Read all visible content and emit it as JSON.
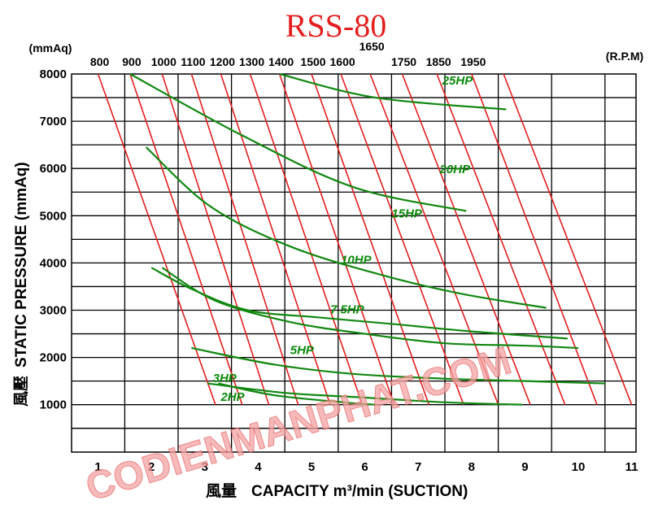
{
  "chart_data": {
    "type": "line",
    "title": "RSS-80",
    "xlabel_cjk": "風量",
    "xlabel": "CAPACITY  m³/min (SUCTION)",
    "ylabel_cjk": "風壓",
    "ylabel": "STATIC  PRESSURE  (mmAq)",
    "y_unit": "(mmAq)",
    "rpm_unit": "(R.P.M)",
    "xlim": [
      0,
      11
    ],
    "ylim": [
      0,
      8000
    ],
    "x_ticks": [
      1,
      2,
      3,
      4,
      5,
      6,
      7,
      8,
      9,
      10,
      11
    ],
    "y_ticks": [
      1000,
      2000,
      3000,
      4000,
      5000,
      6000,
      7000,
      8000
    ],
    "grid": true,
    "rpm_series": [
      {
        "name": "800",
        "points": [
          [
            1.0,
            8000
          ],
          [
            3.2,
            1000
          ]
        ]
      },
      {
        "name": "900",
        "points": [
          [
            1.6,
            8000
          ],
          [
            3.7,
            1000
          ]
        ]
      },
      {
        "name": "1000",
        "points": [
          [
            2.2,
            8000
          ],
          [
            4.2,
            1000
          ]
        ]
      },
      {
        "name": "1100",
        "points": [
          [
            2.75,
            8000
          ],
          [
            4.75,
            1000
          ]
        ]
      },
      {
        "name": "1200",
        "points": [
          [
            3.3,
            8000
          ],
          [
            5.35,
            1000
          ]
        ]
      },
      {
        "name": "1300",
        "points": [
          [
            3.85,
            8000
          ],
          [
            5.95,
            1000
          ]
        ]
      },
      {
        "name": "1400",
        "points": [
          [
            4.4,
            8000
          ],
          [
            6.55,
            1000
          ]
        ]
      },
      {
        "name": "1500",
        "points": [
          [
            5.0,
            8000
          ],
          [
            7.2,
            1000
          ]
        ]
      },
      {
        "name": "1600",
        "points": [
          [
            5.55,
            8000
          ],
          [
            7.85,
            1000
          ]
        ]
      },
      {
        "name": "1650",
        "points": [
          [
            6.1,
            8000
          ],
          [
            8.5,
            1000
          ]
        ]
      },
      {
        "name": "1750",
        "points": [
          [
            6.7,
            8000
          ],
          [
            9.1,
            1000
          ]
        ]
      },
      {
        "name": "1850",
        "points": [
          [
            7.35,
            8000
          ],
          [
            9.75,
            1000
          ]
        ]
      },
      {
        "name": "1950",
        "points": [
          [
            8.0,
            8000
          ],
          [
            10.35,
            1000
          ]
        ]
      },
      {
        "name": "",
        "points": [
          [
            8.6,
            8000
          ],
          [
            11.0,
            1000
          ]
        ]
      }
    ],
    "power_series": [
      {
        "name": "2HP",
        "points": [
          [
            3.25,
            1450
          ],
          [
            4.3,
            1200
          ],
          [
            5.6,
            1050
          ],
          [
            6.2,
            1000
          ]
        ]
      },
      {
        "name": "3HP",
        "points": [
          [
            3.05,
            1450
          ],
          [
            4.5,
            1250
          ],
          [
            6.0,
            1150
          ],
          [
            7.5,
            1050
          ],
          [
            8.95,
            1000
          ]
        ]
      },
      {
        "name": "5HP",
        "points": [
          [
            2.75,
            2200
          ],
          [
            4.3,
            1850
          ],
          [
            5.8,
            1650
          ],
          [
            7.5,
            1550
          ],
          [
            9.0,
            1500
          ],
          [
            10.5,
            1450
          ]
        ]
      },
      {
        "name": "7.5HP",
        "points": [
          [
            2.2,
            3900
          ],
          [
            3.2,
            3200
          ],
          [
            4.6,
            2750
          ],
          [
            6.0,
            2500
          ],
          [
            7.5,
            2300
          ],
          [
            9.0,
            2250
          ],
          [
            10.0,
            2200
          ]
        ]
      },
      {
        "name": "10HP",
        "points": [
          [
            2.0,
            3900
          ],
          [
            2.75,
            3450
          ],
          [
            3.8,
            3000
          ],
          [
            5.1,
            2850
          ],
          [
            6.6,
            2700
          ],
          [
            8.0,
            2550
          ],
          [
            9.8,
            2400
          ]
        ]
      },
      {
        "name": "15HP",
        "points": [
          [
            1.9,
            6450
          ],
          [
            3.1,
            5200
          ],
          [
            4.6,
            4350
          ],
          [
            6.3,
            3750
          ],
          [
            7.8,
            3350
          ],
          [
            9.4,
            3050
          ]
        ]
      },
      {
        "name": "20HP",
        "points": [
          [
            1.6,
            8000
          ],
          [
            3.7,
            6700
          ],
          [
            5.8,
            5600
          ],
          [
            7.9,
            5100
          ]
        ]
      },
      {
        "name": "25HP",
        "points": [
          [
            4.4,
            8000
          ],
          [
            6.2,
            7500
          ],
          [
            8.65,
            7250
          ]
        ]
      }
    ],
    "power_labels": [
      {
        "text": "2HP",
        "x": 3.3,
        "y": 1080
      },
      {
        "text": "3HP",
        "x": 3.15,
        "y": 1480
      },
      {
        "text": "5HP",
        "x": 4.6,
        "y": 2070
      },
      {
        "text": "7.5HP",
        "x": 5.35,
        "y": 2930
      },
      {
        "text": "10HP",
        "x": 5.55,
        "y": 3980
      },
      {
        "text": "15HP",
        "x": 6.5,
        "y": 4960
      },
      {
        "text": "20HP",
        "x": 7.4,
        "y": 5900
      },
      {
        "text": "25HP",
        "x": 7.45,
        "y": 7780
      }
    ],
    "rpm_labels": [
      {
        "text": "800",
        "x": 1.0,
        "row": 1
      },
      {
        "text": "900",
        "x": 1.6,
        "row": 1
      },
      {
        "text": "1000",
        "x": 2.2,
        "row": 1
      },
      {
        "text": "1100",
        "x": 2.75,
        "row": 1
      },
      {
        "text": "1200",
        "x": 3.3,
        "row": 1
      },
      {
        "text": "1300",
        "x": 3.85,
        "row": 1
      },
      {
        "text": "1400",
        "x": 4.4,
        "row": 1
      },
      {
        "text": "1500",
        "x": 5.0,
        "row": 1
      },
      {
        "text": "1600",
        "x": 5.55,
        "row": 1
      },
      {
        "text": "1650",
        "x": 6.1,
        "row": 0
      },
      {
        "text": "1750",
        "x": 6.7,
        "row": 1
      },
      {
        "text": "1850",
        "x": 7.35,
        "row": 1
      },
      {
        "text": "1950",
        "x": 8.0,
        "row": 1
      }
    ],
    "watermark": "CODIENMANPHAT.COM"
  },
  "colors": {
    "rpm_line": "#e41e1e",
    "hp_line": "#118811",
    "grid": "#000000"
  }
}
